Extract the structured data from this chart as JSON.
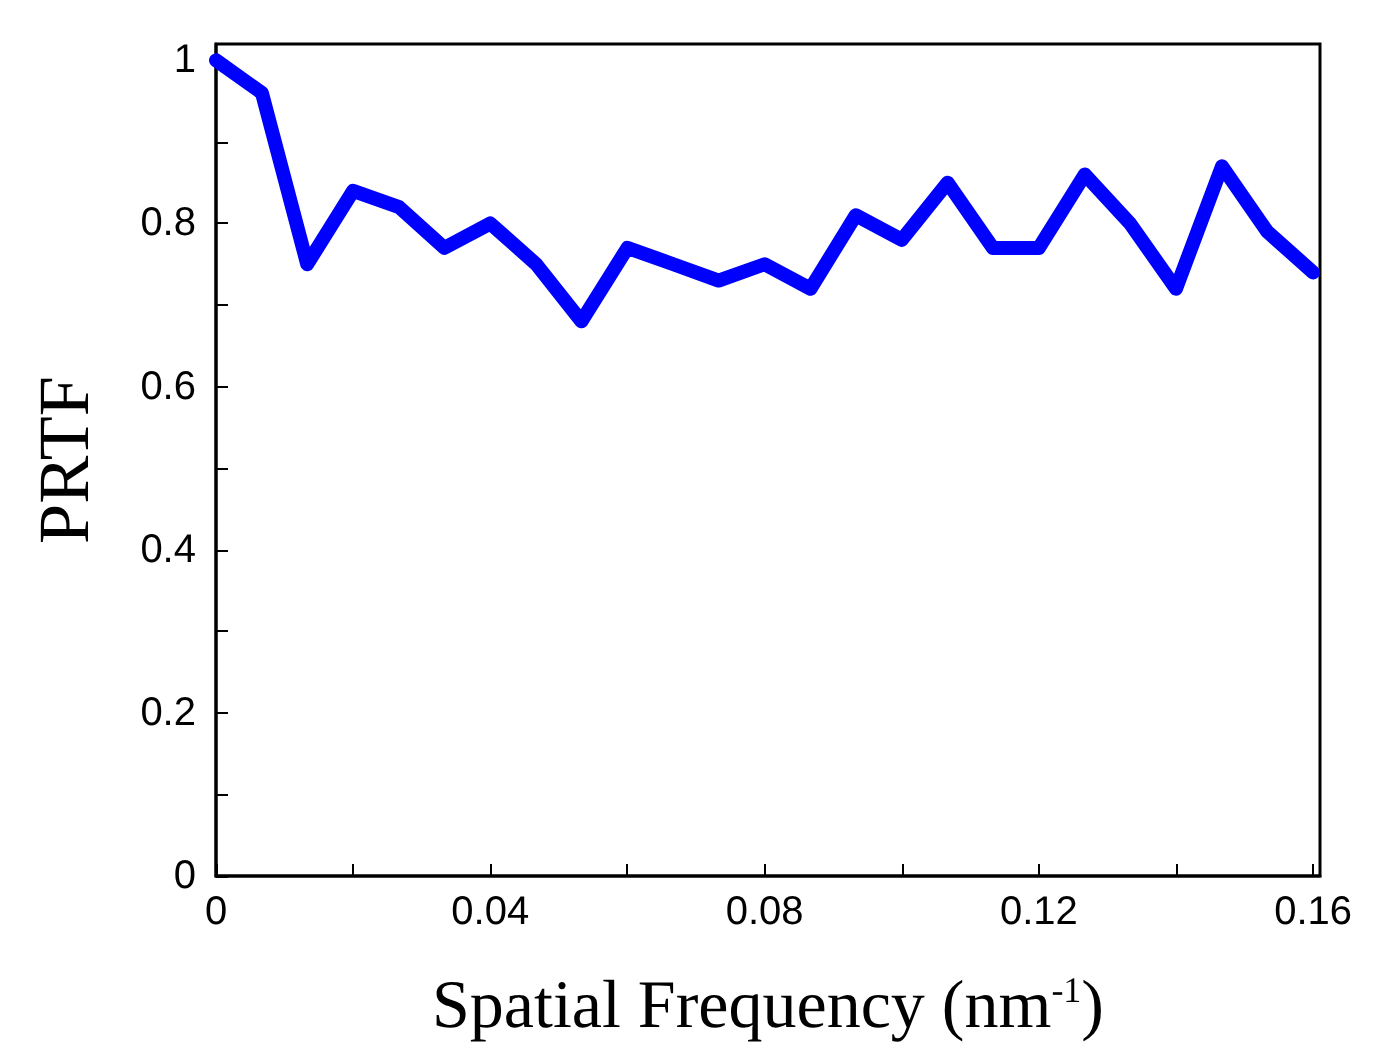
{
  "chart_data": {
    "type": "line",
    "xlabel": "Spatial Frequency (nm$^{-1}$)",
    "ylabel": "PRTF",
    "x": [
      0,
      0.0067,
      0.0133,
      0.02,
      0.0267,
      0.0333,
      0.04,
      0.0467,
      0.0533,
      0.06,
      0.0667,
      0.0733,
      0.08,
      0.0867,
      0.0933,
      0.1,
      0.1067,
      0.1133,
      0.12,
      0.1267,
      0.1333,
      0.14,
      0.1467,
      0.1533,
      0.16
    ],
    "series": [
      {
        "color": "#0000ff",
        "values": [
          1.0,
          0.96,
          0.75,
          0.84,
          0.82,
          0.77,
          0.8,
          0.75,
          0.68,
          0.77,
          0.75,
          0.73,
          0.75,
          0.72,
          0.81,
          0.78,
          0.85,
          0.77,
          0.77,
          0.86,
          0.8,
          0.72,
          0.87,
          0.79,
          0.74
        ]
      }
    ],
    "xlim": [
      0,
      0.161
    ],
    "ylim": [
      0,
      1.02
    ],
    "xticks": [
      0,
      {
        "value": 0.02,
        "label": null
      },
      0.04,
      {
        "value": 0.06,
        "label": null
      },
      0.08,
      {
        "value": 0.1,
        "label": null
      },
      0.12,
      {
        "value": 0.14,
        "label": null
      },
      0.16
    ],
    "yticks": [
      0,
      {
        "value": 0.1,
        "label": null
      },
      0.2,
      {
        "value": 0.3,
        "label": null
      },
      0.4,
      {
        "value": 0.5,
        "label": null
      },
      0.6,
      {
        "value": 0.7,
        "label": null
      },
      0.8,
      {
        "value": 0.9,
        "label": null
      },
      1
    ],
    "grid": false,
    "line_style": "solid"
  }
}
